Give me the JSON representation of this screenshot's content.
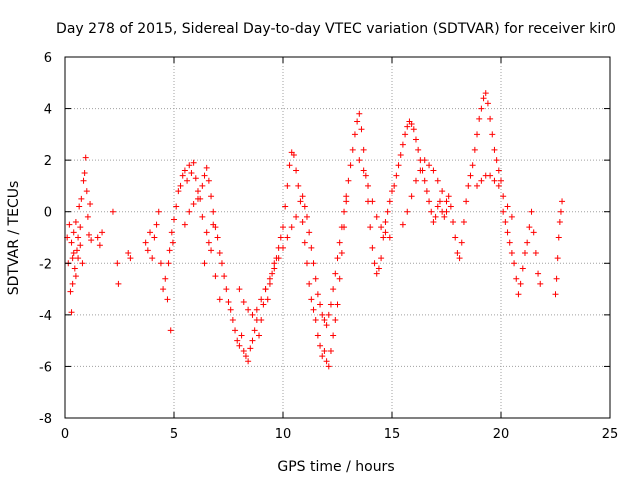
{
  "colors": {
    "series": "#ff0000",
    "grid": "#a0a0a0",
    "axis": "#000000",
    "background": "#ffffff"
  },
  "chart_data": {
    "type": "scatter",
    "title": "Day 278 of 2015, Sidereal Day-to-day VTEC variation (SDTVAR) for receiver kir0",
    "xlabel": "GPS time / hours",
    "ylabel": "SDTVAR / TECUs",
    "xlim": [
      0,
      25
    ],
    "ylim": [
      -8,
      6
    ],
    "xticks": [
      0,
      5,
      10,
      15,
      20,
      25
    ],
    "yticks": [
      -8,
      -6,
      -4,
      -2,
      0,
      2,
      4,
      6
    ],
    "grid": true,
    "marker": "+",
    "series": [
      {
        "name": "SDTVAR",
        "x": [
          0.1,
          0.15,
          0.2,
          0.25,
          0.3,
          0.35,
          0.4,
          0.45,
          0.5,
          0.55,
          0.6,
          0.65,
          0.7,
          0.75,
          0.8,
          0.85,
          0.9,
          0.95,
          1.0,
          1.05,
          1.1,
          1.15,
          1.2,
          0.4,
          0.5,
          0.6,
          0.7,
          0.3,
          0.35,
          1.5,
          1.6,
          1.7,
          2.2,
          2.4,
          2.45,
          2.9,
          3.0,
          3.7,
          3.8,
          3.9,
          4.0,
          4.1,
          4.2,
          4.3,
          4.4,
          4.5,
          4.6,
          4.7,
          4.75,
          4.8,
          4.85,
          4.9,
          4.95,
          5.0,
          5.1,
          5.2,
          5.3,
          5.4,
          5.5,
          5.6,
          5.7,
          5.8,
          5.9,
          6.0,
          6.1,
          6.2,
          6.3,
          6.4,
          6.5,
          6.6,
          6.7,
          6.8,
          6.9,
          7.0,
          7.1,
          7.2,
          5.5,
          5.7,
          5.9,
          6.1,
          6.3,
          6.5,
          6.7,
          6.9,
          7.1,
          6.4,
          6.6,
          6.8,
          7.3,
          7.4,
          7.5,
          7.6,
          7.7,
          7.8,
          7.9,
          8.0,
          8.1,
          8.2,
          8.3,
          8.4,
          8.5,
          8.6,
          8.7,
          8.8,
          8.9,
          9.0,
          9.1,
          9.2,
          9.3,
          9.4,
          9.5,
          9.6,
          9.7,
          9.8,
          9.9,
          10.0,
          8.0,
          8.2,
          8.4,
          8.6,
          8.8,
          9.0,
          9.2,
          9.4,
          9.6,
          9.8,
          10.0,
          10.2,
          10.4,
          10.6,
          10.1,
          10.2,
          10.3,
          10.4,
          10.5,
          10.6,
          10.7,
          10.8,
          10.9,
          11.0,
          11.1,
          11.2,
          11.3,
          11.4,
          11.5,
          11.6,
          11.7,
          11.8,
          11.9,
          12.0,
          12.1,
          12.2,
          12.3,
          12.4,
          12.5,
          12.6,
          12.7,
          12.8,
          12.9,
          13.0,
          10.9,
          11.0,
          11.1,
          11.2,
          11.3,
          11.4,
          11.5,
          11.6,
          11.7,
          11.8,
          11.9,
          12.0,
          12.1,
          12.2,
          12.3,
          12.4,
          12.5,
          12.6,
          12.7,
          12.8,
          12.9,
          13.1,
          13.2,
          13.3,
          13.4,
          13.5,
          13.6,
          13.7,
          13.8,
          13.9,
          14.0,
          14.1,
          14.2,
          14.3,
          14.4,
          14.5,
          14.6,
          14.7,
          14.8,
          14.9,
          15.0,
          13.5,
          13.7,
          13.9,
          14.1,
          14.3,
          14.5,
          14.7,
          14.9,
          15.1,
          15.2,
          15.3,
          15.4,
          15.5,
          15.6,
          15.7,
          15.8,
          15.9,
          16.0,
          16.1,
          16.2,
          16.3,
          16.4,
          16.5,
          16.6,
          16.7,
          16.8,
          16.9,
          17.0,
          17.1,
          17.2,
          17.3,
          17.4,
          17.5,
          15.5,
          15.7,
          15.9,
          16.1,
          16.3,
          16.5,
          16.7,
          16.9,
          17.1,
          17.3,
          17.5,
          17.6,
          17.7,
          17.8,
          17.9,
          18.0,
          18.1,
          18.2,
          18.3,
          18.4,
          18.5,
          18.6,
          18.7,
          18.8,
          18.9,
          19.0,
          19.1,
          19.2,
          19.3,
          19.4,
          19.5,
          19.6,
          19.7,
          19.8,
          19.9,
          20.0,
          18.9,
          19.1,
          19.3,
          19.5,
          19.7,
          19.9,
          20.1,
          20.3,
          20.5,
          20.1,
          20.2,
          20.3,
          20.4,
          20.5,
          20.6,
          20.7,
          20.8,
          20.9,
          21.0,
          21.1,
          21.2,
          21.3,
          21.4,
          21.5,
          21.6,
          21.7,
          21.8,
          22.5,
          22.55,
          22.6,
          22.65,
          22.7,
          22.75,
          22.8
        ],
        "y": [
          -1.0,
          -2.0,
          -0.5,
          -3.1,
          -1.2,
          -1.8,
          -0.8,
          -2.2,
          -0.4,
          -1.5,
          -1.0,
          0.2,
          -1.3,
          0.5,
          -2.0,
          1.2,
          1.5,
          2.1,
          0.8,
          -0.2,
          -0.9,
          0.3,
          -1.1,
          -1.6,
          -2.5,
          -1.8,
          -0.6,
          -3.9,
          -2.8,
          -1.0,
          -1.3,
          -0.8,
          0.0,
          -2.0,
          -2.8,
          -1.6,
          -1.8,
          -1.2,
          -1.5,
          -0.8,
          -1.8,
          -1.0,
          -0.5,
          0.0,
          -2.0,
          -3.0,
          -2.6,
          -3.4,
          -2.0,
          -1.5,
          -4.6,
          -0.8,
          -1.2,
          -0.3,
          0.2,
          0.8,
          1.0,
          1.4,
          1.6,
          1.2,
          1.8,
          1.5,
          1.9,
          1.3,
          0.8,
          0.5,
          1.0,
          1.4,
          1.7,
          1.2,
          0.6,
          0.0,
          -0.6,
          -1.0,
          -1.6,
          -2.0,
          -0.5,
          0.0,
          0.3,
          0.5,
          -0.2,
          -0.8,
          -1.5,
          -2.5,
          -3.4,
          -2.0,
          -1.2,
          -0.5,
          -2.5,
          -3.0,
          -3.5,
          -3.8,
          -4.2,
          -4.6,
          -5.0,
          -5.2,
          -4.8,
          -5.4,
          -5.6,
          -5.8,
          -5.3,
          -5.0,
          -4.6,
          -4.2,
          -4.8,
          -4.2,
          -3.6,
          -3.0,
          -3.4,
          -2.8,
          -2.4,
          -2.0,
          -1.8,
          -1.4,
          -1.0,
          -0.6,
          -3.0,
          -3.5,
          -3.8,
          -4.0,
          -3.8,
          -3.4,
          -3.0,
          -2.6,
          -2.2,
          -1.8,
          -1.4,
          -1.0,
          -0.6,
          -0.2,
          0.2,
          1.0,
          1.8,
          2.3,
          2.2,
          1.6,
          1.0,
          0.4,
          -0.4,
          -1.2,
          -2.0,
          -2.8,
          -3.4,
          -3.8,
          -4.2,
          -4.8,
          -5.2,
          -5.6,
          -5.4,
          -5.8,
          -6.0,
          -5.4,
          -4.8,
          -4.2,
          -3.6,
          -2.6,
          -1.6,
          -0.6,
          0.4,
          1.2,
          0.6,
          0.2,
          -0.2,
          -0.8,
          -1.4,
          -2.0,
          -2.6,
          -3.2,
          -3.6,
          -4.0,
          -4.2,
          -4.4,
          -4.0,
          -3.6,
          -3.0,
          -2.4,
          -1.8,
          -1.2,
          -0.6,
          0.0,
          0.6,
          1.8,
          2.4,
          3.0,
          3.5,
          3.8,
          3.2,
          2.4,
          1.4,
          0.4,
          -0.6,
          -1.4,
          -2.0,
          -2.4,
          -2.2,
          -1.8,
          -1.0,
          -0.4,
          0.0,
          0.4,
          0.8,
          2.0,
          1.6,
          1.0,
          0.4,
          -0.2,
          -0.6,
          -0.8,
          -1.0,
          1.0,
          1.4,
          1.8,
          2.2,
          2.6,
          3.0,
          3.3,
          3.5,
          3.4,
          3.2,
          2.8,
          2.4,
          2.0,
          1.6,
          1.2,
          0.8,
          0.4,
          0.0,
          -0.4,
          -0.2,
          0.2,
          0.4,
          0.0,
          -0.2,
          0.0,
          -0.5,
          0.0,
          0.6,
          1.2,
          1.6,
          2.0,
          1.8,
          1.6,
          1.2,
          0.8,
          0.4,
          0.6,
          0.2,
          -0.4,
          -1.0,
          -1.6,
          -1.8,
          -1.2,
          -0.4,
          0.4,
          1.0,
          1.4,
          1.8,
          2.4,
          3.0,
          3.6,
          4.0,
          4.4,
          4.6,
          4.2,
          3.6,
          3.0,
          2.4,
          2.0,
          1.6,
          1.2,
          1.0,
          1.2,
          1.4,
          1.4,
          1.2,
          1.0,
          0.6,
          0.2,
          -0.2,
          0.0,
          -0.4,
          -0.8,
          -1.2,
          -1.6,
          -2.0,
          -2.6,
          -3.2,
          -2.8,
          -2.2,
          -1.6,
          -1.2,
          -0.6,
          0.0,
          -0.8,
          -1.6,
          -2.4,
          -2.8,
          -3.2,
          -2.6,
          -1.8,
          -1.0,
          -0.4,
          0.0,
          0.4
        ]
      }
    ]
  }
}
